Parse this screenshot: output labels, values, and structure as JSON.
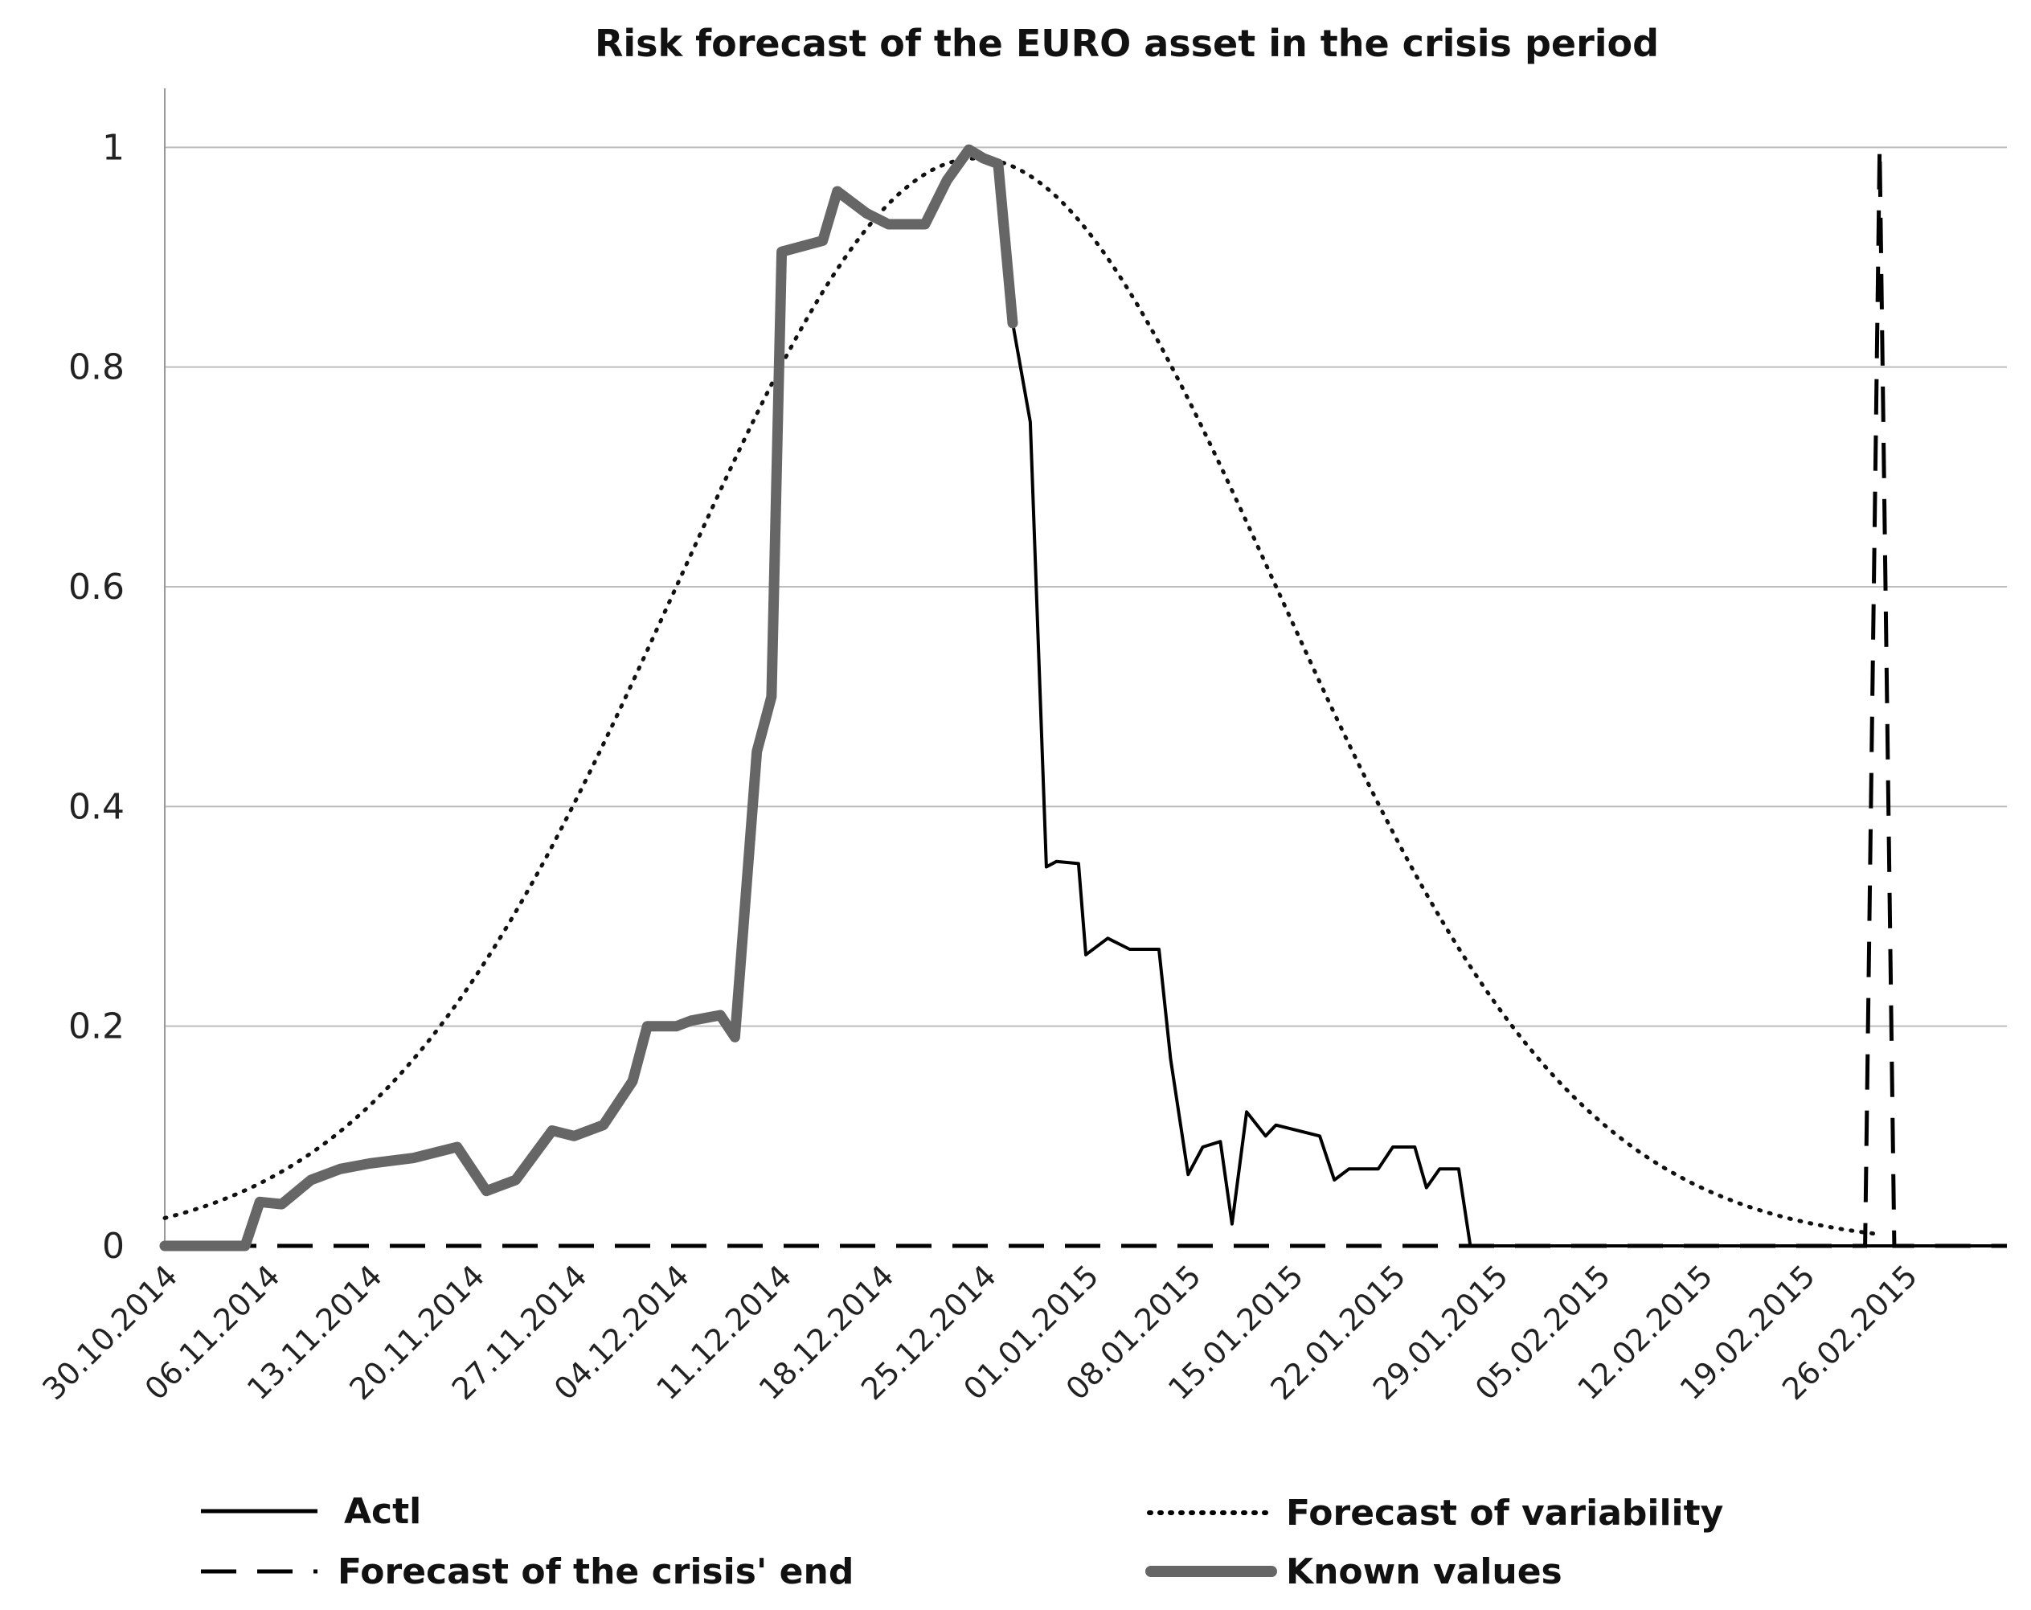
{
  "chart_data": {
    "type": "line",
    "title": "Risk forecast of the EURO asset in the crisis period",
    "xlabel": "",
    "ylabel": "",
    "x_start": "30.10.2014",
    "x_end": "06.03.2015",
    "ylim": [
      0,
      1.05
    ],
    "y_ticks": [
      0,
      0.2,
      0.4,
      0.6,
      0.8,
      1
    ],
    "y_tick_labels": [
      "0",
      "0.2",
      "0.4",
      "0.6",
      "0.8",
      "1"
    ],
    "x_ticks": [
      {
        "label": "30.10.2014",
        "day": 0
      },
      {
        "label": "06.11.2014",
        "day": 7
      },
      {
        "label": "13.11.2014",
        "day": 14
      },
      {
        "label": "20.11.2014",
        "day": 21
      },
      {
        "label": "27.11.2014",
        "day": 28
      },
      {
        "label": "04.12.2014",
        "day": 35
      },
      {
        "label": "11.12.2014",
        "day": 42
      },
      {
        "label": "18.12.2014",
        "day": 49
      },
      {
        "label": "25.12.2014",
        "day": 56
      },
      {
        "label": "01.01.2015",
        "day": 63
      },
      {
        "label": "08.01.2015",
        "day": 70
      },
      {
        "label": "15.01.2015",
        "day": 77
      },
      {
        "label": "22.01.2015",
        "day": 84
      },
      {
        "label": "29.01.2015",
        "day": 91
      },
      {
        "label": "05.02.2015",
        "day": 98
      },
      {
        "label": "12.02.2015",
        "day": 105
      },
      {
        "label": "19.02.2015",
        "day": 112
      },
      {
        "label": "26.02.2015",
        "day": 119
      }
    ],
    "grid": true,
    "legend_position": "bottom",
    "series": [
      {
        "name": "Actl",
        "style": "solid-thin",
        "points": [
          [
            0,
            0
          ],
          [
            5.5,
            0
          ],
          [
            6.5,
            0.04
          ],
          [
            8,
            0.038
          ],
          [
            10,
            0.06
          ],
          [
            12,
            0.07
          ],
          [
            14,
            0.075
          ],
          [
            17,
            0.08
          ],
          [
            20,
            0.09
          ],
          [
            22,
            0.05
          ],
          [
            24,
            0.06
          ],
          [
            26.5,
            0.105
          ],
          [
            28,
            0.1
          ],
          [
            30,
            0.11
          ],
          [
            32,
            0.15
          ],
          [
            33,
            0.2
          ],
          [
            35,
            0.2
          ],
          [
            36,
            0.205
          ],
          [
            38,
            0.21
          ],
          [
            39,
            0.19
          ],
          [
            40.5,
            0.45
          ],
          [
            41.5,
            0.5
          ],
          [
            42.2,
            0.905
          ],
          [
            45,
            0.915
          ],
          [
            46,
            0.96
          ],
          [
            48,
            0.94
          ],
          [
            49.5,
            0.93
          ],
          [
            52,
            0.93
          ],
          [
            53.5,
            0.97
          ],
          [
            55,
            0.998
          ],
          [
            56,
            0.99
          ],
          [
            57,
            0.985
          ],
          [
            58,
            0.84
          ],
          [
            59.2,
            0.75
          ],
          [
            60.3,
            0.345
          ],
          [
            61,
            0.35
          ],
          [
            62.5,
            0.348
          ],
          [
            63,
            0.265
          ],
          [
            64.5,
            0.28
          ],
          [
            66,
            0.27
          ],
          [
            68,
            0.27
          ],
          [
            68.8,
            0.17
          ],
          [
            70,
            0.065
          ],
          [
            71,
            0.09
          ],
          [
            72.2,
            0.095
          ],
          [
            73,
            0.02
          ],
          [
            74,
            0.122
          ],
          [
            75.3,
            0.1
          ],
          [
            76,
            0.11
          ],
          [
            79,
            0.1
          ],
          [
            80,
            0.06
          ],
          [
            81,
            0.07
          ],
          [
            83,
            0.07
          ],
          [
            84,
            0.09
          ],
          [
            85.5,
            0.09
          ],
          [
            86.3,
            0.053
          ],
          [
            87.2,
            0.07
          ],
          [
            88.5,
            0.07
          ],
          [
            89.3,
            0
          ],
          [
            126,
            0
          ]
        ]
      },
      {
        "name": "Forecast of the crisis' end",
        "style": "dashed",
        "points": [
          [
            0,
            0
          ],
          [
            116.3,
            0
          ],
          [
            117.3,
            1.0
          ],
          [
            118.3,
            0
          ],
          [
            126,
            0
          ]
        ]
      },
      {
        "name": "Forecast of variability",
        "style": "dotted",
        "bell": {
          "center": 55.5,
          "peak": 0.99,
          "sigma": 20.5,
          "x_from": 0,
          "x_to": 117
        },
        "points": [
          [
            0,
            0.0
          ],
          [
            7,
            0.02
          ],
          [
            14,
            0.08
          ],
          [
            21,
            0.2
          ],
          [
            28,
            0.4
          ],
          [
            35,
            0.58
          ],
          [
            42,
            0.8
          ],
          [
            49,
            0.93
          ],
          [
            55.5,
            0.99
          ],
          [
            63,
            0.93
          ],
          [
            70,
            0.8
          ],
          [
            77,
            0.6
          ],
          [
            84,
            0.4
          ],
          [
            91,
            0.22
          ],
          [
            98,
            0.08
          ],
          [
            105,
            0.02
          ],
          [
            112,
            0.0
          ]
        ]
      },
      {
        "name": "Known values",
        "style": "solid-thick",
        "points": [
          [
            0,
            0
          ],
          [
            5.5,
            0
          ],
          [
            6.5,
            0.04
          ],
          [
            8,
            0.038
          ],
          [
            10,
            0.06
          ],
          [
            12,
            0.07
          ],
          [
            14,
            0.075
          ],
          [
            17,
            0.08
          ],
          [
            20,
            0.09
          ],
          [
            22,
            0.05
          ],
          [
            24,
            0.06
          ],
          [
            26.5,
            0.105
          ],
          [
            28,
            0.1
          ],
          [
            30,
            0.11
          ],
          [
            32,
            0.15
          ],
          [
            33,
            0.2
          ],
          [
            35,
            0.2
          ],
          [
            36,
            0.205
          ],
          [
            38,
            0.21
          ],
          [
            39,
            0.19
          ],
          [
            40.5,
            0.45
          ],
          [
            41.5,
            0.5
          ],
          [
            42.2,
            0.905
          ],
          [
            45,
            0.915
          ],
          [
            46,
            0.96
          ],
          [
            48,
            0.94
          ],
          [
            49.5,
            0.93
          ],
          [
            52,
            0.93
          ],
          [
            53.5,
            0.97
          ],
          [
            55,
            0.998
          ],
          [
            56,
            0.99
          ],
          [
            57,
            0.985
          ],
          [
            58,
            0.84
          ]
        ]
      }
    ]
  }
}
